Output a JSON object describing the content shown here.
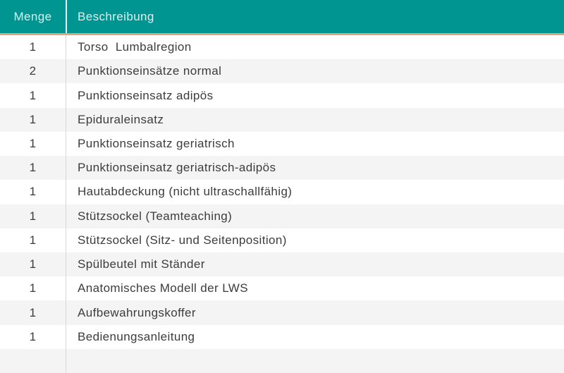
{
  "table": {
    "columns": [
      {
        "label": "Menge"
      },
      {
        "label": "Beschreibung"
      }
    ],
    "rows": [
      {
        "menge": "1",
        "beschreibung": "Torso  Lumbalregion"
      },
      {
        "menge": "2",
        "beschreibung": "Punktionseinsätze normal"
      },
      {
        "menge": "1",
        "beschreibung": "Punktionseinsatz adipös"
      },
      {
        "menge": "1",
        "beschreibung": "Epiduraleinsatz"
      },
      {
        "menge": "1",
        "beschreibung": "Punktionseinsatz geriatrisch"
      },
      {
        "menge": "1",
        "beschreibung": "Punktionseinsatz geriatrisch-adipös"
      },
      {
        "menge": "1",
        "beschreibung": "Hautabdeckung (nicht ultraschallfähig)"
      },
      {
        "menge": "1",
        "beschreibung": "Stützsockel (Teamteaching)"
      },
      {
        "menge": "1",
        "beschreibung": "Stützsockel (Sitz- und Seitenposition)"
      },
      {
        "menge": "1",
        "beschreibung": "Spülbeutel mit Ständer"
      },
      {
        "menge": "1",
        "beschreibung": "Anatomisches Modell der LWS"
      },
      {
        "menge": "1",
        "beschreibung": "Aufbewahrungskoffer"
      },
      {
        "menge": "1",
        "beschreibung": "Bedienungsanleitung"
      },
      {
        "menge": "",
        "beschreibung": ""
      }
    ],
    "colors": {
      "header_bg": "#009591",
      "header_text": "#d8f1f0",
      "header_divider": "#e9f7f6",
      "accent_border": "#d9a97c",
      "row_bg": "#ffffff",
      "row_alt_bg": "#f4f4f4",
      "body_text": "#3c3c3c",
      "divider": "#d8d8d8"
    }
  }
}
